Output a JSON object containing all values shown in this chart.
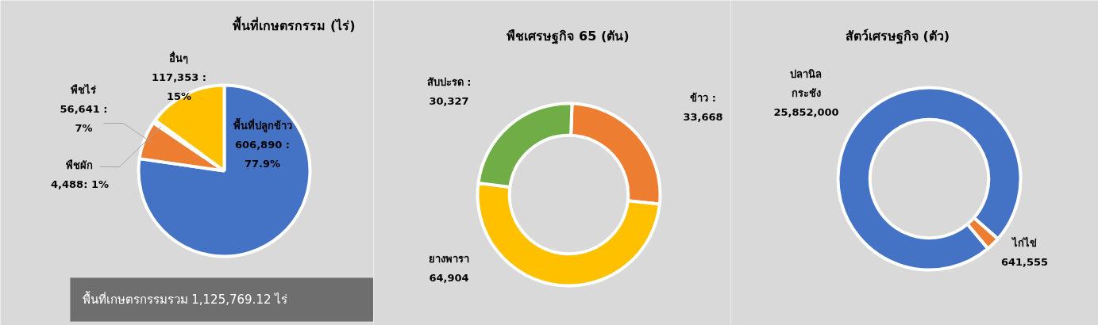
{
  "chart_data": [
    {
      "type": "pie",
      "title": "พื้นที่เกษตรกรรม (ไร่)",
      "categories": [
        "พื้นที่ปลูกข้าว",
        "พืชไร่",
        "พืชผัก",
        "อื่นๆ"
      ],
      "values": [
        606890,
        56641,
        4488,
        117353
      ],
      "colors": [
        "#4472c4",
        "#ed7d31",
        "#a5a5a5",
        "#ffc000"
      ],
      "value_labels": [
        "606,890 : 77.9%",
        "56,641 : 7%",
        "4,488: 1%",
        "117,353 : 15%"
      ],
      "annotations": [
        "พื้นที่เกษตรกรรมรวม 1,125,769.12 ไร่"
      ]
    },
    {
      "type": "donut",
      "title": "พืชเศรษฐกิจ 65 (ตัน)",
      "categories": [
        "ข้าว",
        "ยางพารา",
        "สับปะรด"
      ],
      "values": [
        33668,
        64904,
        30327
      ],
      "colors": [
        "#ed7d31",
        "#ffc000",
        "#70ad47"
      ],
      "value_labels": [
        ": 33,668",
        "64,904",
        ": 30,327"
      ]
    },
    {
      "type": "donut",
      "title": "สัตว์เศรษฐกิจ (ตัว)",
      "categories": [
        "ปลานิล กระชัง",
        "ไก่ไข่"
      ],
      "values": [
        25852000,
        641555
      ],
      "colors": [
        "#4472c4",
        "#ed7d31"
      ],
      "value_labels": [
        "25,852,000",
        "641,555"
      ]
    }
  ]
}
